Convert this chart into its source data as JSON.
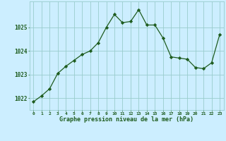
{
  "hours": [
    0,
    1,
    2,
    3,
    4,
    5,
    6,
    7,
    8,
    9,
    10,
    11,
    12,
    13,
    14,
    15,
    16,
    17,
    18,
    19,
    20,
    21,
    22,
    23
  ],
  "pressure": [
    1021.85,
    1022.1,
    1022.4,
    1023.05,
    1023.35,
    1023.6,
    1023.85,
    1024.0,
    1024.35,
    1025.0,
    1025.55,
    1025.2,
    1025.25,
    1025.75,
    1025.1,
    1025.1,
    1024.55,
    1023.75,
    1023.7,
    1023.65,
    1023.3,
    1023.25,
    1023.5,
    1024.7
  ],
  "line_color": "#1e5c1e",
  "marker": "D",
  "marker_size": 2.2,
  "bg_color": "#cceeff",
  "grid_color": "#99cccc",
  "xlabel": "Graphe pression niveau de la mer (hPa)",
  "xlabel_color": "#1e5c1e",
  "tick_color": "#1e5c1e",
  "ytick_labels": [
    1022,
    1023,
    1024,
    1025
  ],
  "ylim": [
    1021.5,
    1026.1
  ],
  "xlim": [
    -0.5,
    23.5
  ],
  "xtick_fontsize": 4.5,
  "ytick_fontsize": 5.5,
  "xlabel_fontsize": 6.0
}
